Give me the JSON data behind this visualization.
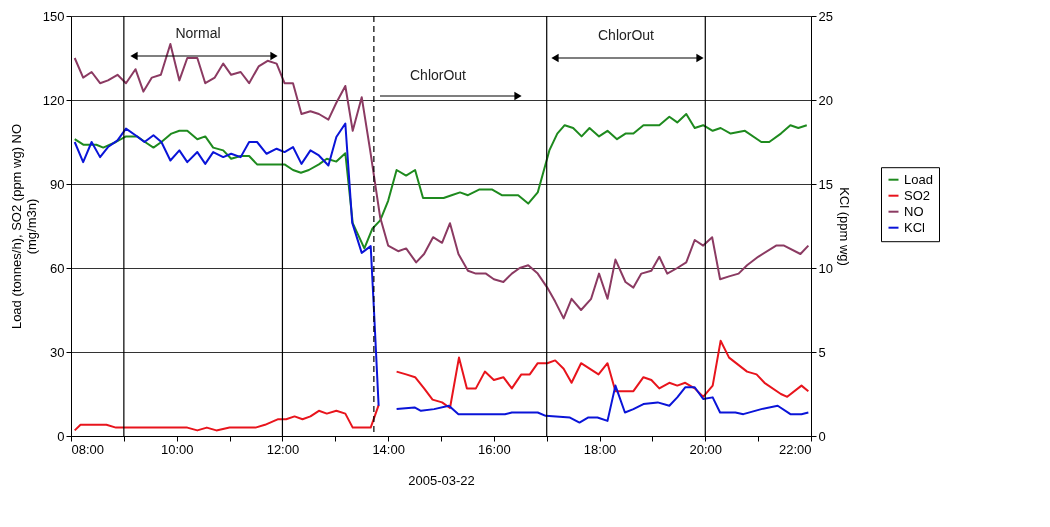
{
  "chart_data": {
    "type": "line",
    "xlabel": "2005-03-22",
    "ylabel": "Load (tonnes/h), SO2 (ppm wg) NO (mg/m3n)",
    "y2label": "KCl (ppm wg)",
    "xlim": [
      8,
      22
    ],
    "xticks": [
      {
        "value": 8,
        "label": "08:00"
      },
      {
        "value": 9,
        "label": null
      },
      {
        "value": 10,
        "label": "10:00"
      },
      {
        "value": 11,
        "label": null
      },
      {
        "value": 12,
        "label": "12:00"
      },
      {
        "value": 13,
        "label": null
      },
      {
        "value": 14,
        "label": "14:00"
      },
      {
        "value": 15,
        "label": null
      },
      {
        "value": 16,
        "label": "16:00"
      },
      {
        "value": 17,
        "label": null
      },
      {
        "value": 18,
        "label": "18:00"
      },
      {
        "value": 19,
        "label": null
      },
      {
        "value": 20,
        "label": "20:00"
      },
      {
        "value": 21,
        "label": null
      },
      {
        "value": 22,
        "label": "22:00"
      }
    ],
    "ylim": [
      0,
      150
    ],
    "yticks": [
      0,
      30,
      60,
      90,
      120,
      150
    ],
    "y2lim": [
      0,
      25
    ],
    "y2ticks": [
      0,
      5,
      10,
      15,
      20,
      25
    ],
    "grid": "y",
    "legend": "right",
    "line_style": "solid",
    "marker": "none",
    "series": [
      {
        "name": "Load",
        "color": "#1e8a1e",
        "x": [
          8.07,
          8.24,
          8.48,
          8.61,
          8.85,
          9.04,
          9.25,
          9.4,
          9.56,
          9.71,
          9.9,
          10.05,
          10.2,
          10.39,
          10.54,
          10.69,
          10.88,
          11.03,
          11.21,
          11.37,
          11.52,
          11.74,
          12.04,
          12.2,
          12.35,
          12.5,
          12.69,
          12.84,
          13.02,
          13.19,
          13.33,
          13.55,
          13.7,
          13.85,
          14.0,
          14.16,
          14.34,
          14.51,
          14.66,
          14.87,
          15.05,
          15.2,
          15.36,
          15.51,
          15.72,
          15.97,
          16.15,
          16.46,
          16.65,
          16.83,
          17.05,
          17.2,
          17.34,
          17.5,
          17.66,
          17.81,
          17.99,
          18.15,
          18.33,
          18.49,
          18.64,
          18.83,
          19.13,
          19.32,
          19.47,
          19.64,
          19.8,
          19.96,
          20.14,
          20.29,
          20.48,
          20.75,
          21.06,
          21.21,
          21.43,
          21.61,
          21.76,
          21.92
        ],
        "values": [
          106,
          104,
          104,
          103,
          105,
          107,
          107,
          105,
          103,
          105,
          108,
          109,
          109,
          106,
          107,
          103,
          102,
          99,
          100,
          100,
          97,
          97,
          97,
          95,
          94,
          95,
          97,
          99,
          98,
          101,
          76,
          67,
          74,
          77,
          84,
          95,
          93,
          95,
          85,
          85,
          85,
          86,
          87,
          86,
          88,
          88,
          86,
          86,
          83,
          87,
          102,
          108,
          111,
          110,
          107,
          110,
          107,
          109,
          106,
          108,
          108,
          111,
          111,
          114,
          112,
          115,
          110,
          111,
          109,
          110,
          108,
          109,
          105,
          105,
          108,
          111,
          110,
          111
        ]
      },
      {
        "name": "SO2",
        "color": "#e8141c",
        "x": [
          8.07,
          8.18,
          8.36,
          8.67,
          8.85,
          9.16,
          9.34,
          9.77,
          10.02,
          10.2,
          10.39,
          10.57,
          10.75,
          11.0,
          11.49,
          11.67,
          11.92,
          12.07,
          12.23,
          12.38,
          12.53,
          12.69,
          12.84,
          13.02,
          13.19,
          13.33,
          13.67,
          13.82,
          14.0,
          14.16,
          14.34,
          14.51,
          14.68,
          14.84,
          15.02,
          15.17,
          15.34,
          15.49,
          15.66,
          15.83,
          16.0,
          16.18,
          16.34,
          16.52,
          16.68,
          16.83,
          17.01,
          17.16,
          17.32,
          17.47,
          17.65,
          17.98,
          18.15,
          18.3,
          18.49,
          18.64,
          18.83,
          18.98,
          19.13,
          19.32,
          19.47,
          19.62,
          19.8,
          19.96,
          20.14,
          20.29,
          20.45,
          20.79,
          20.97,
          21.12,
          21.43,
          21.55,
          21.82,
          21.95
        ],
        "values": [
          2,
          4,
          4,
          4,
          3,
          3,
          3,
          3,
          3,
          3,
          2,
          3,
          2,
          3,
          3,
          4,
          6,
          6,
          7,
          6,
          7,
          9,
          8,
          9,
          8,
          3,
          3,
          11,
          null,
          23,
          22,
          21,
          17,
          13,
          12,
          10,
          28,
          17,
          17,
          23,
          20,
          21,
          17,
          22,
          22,
          26,
          26,
          27,
          24,
          19,
          26,
          22,
          26,
          16,
          16,
          16,
          21,
          20,
          17,
          19,
          18,
          19,
          17,
          14,
          18,
          34,
          28,
          23,
          22,
          19,
          15,
          14,
          18,
          16
        ]
      },
      {
        "name": "NO",
        "color": "#8b3a62",
        "x": [
          8.07,
          8.23,
          8.39,
          8.55,
          8.7,
          8.88,
          9.04,
          9.22,
          9.37,
          9.53,
          9.7,
          9.88,
          10.05,
          10.2,
          10.39,
          10.54,
          10.72,
          10.88,
          11.03,
          11.21,
          11.37,
          11.55,
          11.72,
          11.89,
          12.04,
          12.2,
          12.36,
          12.53,
          12.69,
          12.87,
          13.02,
          13.19,
          13.33,
          13.5,
          13.66,
          13.85,
          14.0,
          14.19,
          14.34,
          14.53,
          14.68,
          14.85,
          15.02,
          15.17,
          15.33,
          15.51,
          15.66,
          15.85,
          16.0,
          16.18,
          16.34,
          16.49,
          16.65,
          16.83,
          17.01,
          17.16,
          17.32,
          17.47,
          17.65,
          17.84,
          17.99,
          18.15,
          18.3,
          18.49,
          18.64,
          18.79,
          18.98,
          19.13,
          19.28,
          19.47,
          19.64,
          19.8,
          19.96,
          20.13,
          20.28,
          20.45,
          20.63,
          20.79,
          21.0,
          21.34,
          21.49,
          21.8,
          21.95
        ],
        "values": [
          135,
          128,
          130,
          126,
          127,
          129,
          126,
          131,
          123,
          128,
          129,
          140,
          127,
          135,
          135,
          126,
          128,
          133,
          129,
          130,
          126,
          132,
          134,
          133,
          126,
          126,
          115,
          116,
          115,
          113,
          119,
          125,
          109,
          121,
          102,
          78,
          68,
          66,
          67,
          62,
          65,
          71,
          69,
          76,
          65,
          59,
          58,
          58,
          56,
          55,
          58,
          60,
          61,
          58,
          53,
          48,
          42,
          49,
          45,
          49,
          58,
          49,
          63,
          55,
          53,
          58,
          59,
          64,
          58,
          60,
          62,
          70,
          68,
          71,
          56,
          57,
          58,
          61,
          64,
          68,
          68,
          65,
          68
        ]
      },
      {
        "name": "KCl",
        "color": "#0a14d8",
        "axis": "y2",
        "x": [
          8.07,
          8.23,
          8.39,
          8.55,
          8.7,
          8.88,
          9.04,
          9.22,
          9.39,
          9.56,
          9.71,
          9.88,
          10.05,
          10.2,
          10.39,
          10.54,
          10.69,
          10.88,
          11.03,
          11.21,
          11.37,
          11.52,
          11.7,
          11.89,
          12.04,
          12.2,
          12.36,
          12.53,
          12.69,
          12.87,
          13.02,
          13.19,
          13.32,
          13.5,
          13.67,
          13.73,
          13.82,
          14.0,
          14.16,
          14.5,
          14.62,
          14.87,
          15.15,
          15.33,
          15.66,
          16.21,
          16.34,
          16.83,
          16.98,
          17.44,
          17.62,
          17.78,
          17.96,
          18.15,
          18.3,
          18.48,
          18.64,
          18.83,
          19.1,
          19.32,
          19.47,
          19.62,
          19.8,
          19.96,
          20.14,
          20.28,
          20.57,
          20.72,
          21.06,
          21.37,
          21.61,
          21.82,
          21.95
        ],
        "values": [
          17.5,
          16.3,
          17.5,
          16.6,
          17.2,
          17.6,
          18.3,
          17.9,
          17.5,
          17.9,
          17.5,
          16.4,
          17.0,
          16.3,
          16.9,
          16.2,
          16.9,
          16.6,
          16.8,
          16.6,
          17.5,
          17.5,
          16.8,
          17.1,
          16.9,
          17.2,
          16.2,
          17.0,
          16.7,
          16.1,
          17.8,
          18.6,
          12.7,
          10.9,
          11.3,
          7.6,
          1.8,
          null,
          1.6,
          1.7,
          1.5,
          1.6,
          1.8,
          1.3,
          1.3,
          1.3,
          1.4,
          1.4,
          1.2,
          1.1,
          0.8,
          1.1,
          1.1,
          0.9,
          3.0,
          1.4,
          1.6,
          1.9,
          2.0,
          1.8,
          2.3,
          2.9,
          2.9,
          2.2,
          2.3,
          1.4,
          1.4,
          1.3,
          1.6,
          1.8,
          1.3,
          1.3,
          1.4
        ]
      }
    ],
    "ref_lines": [
      {
        "axis": "x",
        "value": 9,
        "color": "#000000",
        "line_style": "solid"
      },
      {
        "axis": "x",
        "value": 12,
        "color": "#000000",
        "line_style": "solid"
      },
      {
        "axis": "x",
        "value": 13.73,
        "color": "#000000",
        "line_style": "dashed"
      },
      {
        "axis": "x",
        "value": 17,
        "color": "#000000",
        "line_style": "solid"
      },
      {
        "axis": "x",
        "value": 20,
        "color": "#000000",
        "line_style": "solid"
      }
    ],
    "annotations": [
      "Normal",
      "ChlorOut",
      "ChlorOut"
    ]
  }
}
